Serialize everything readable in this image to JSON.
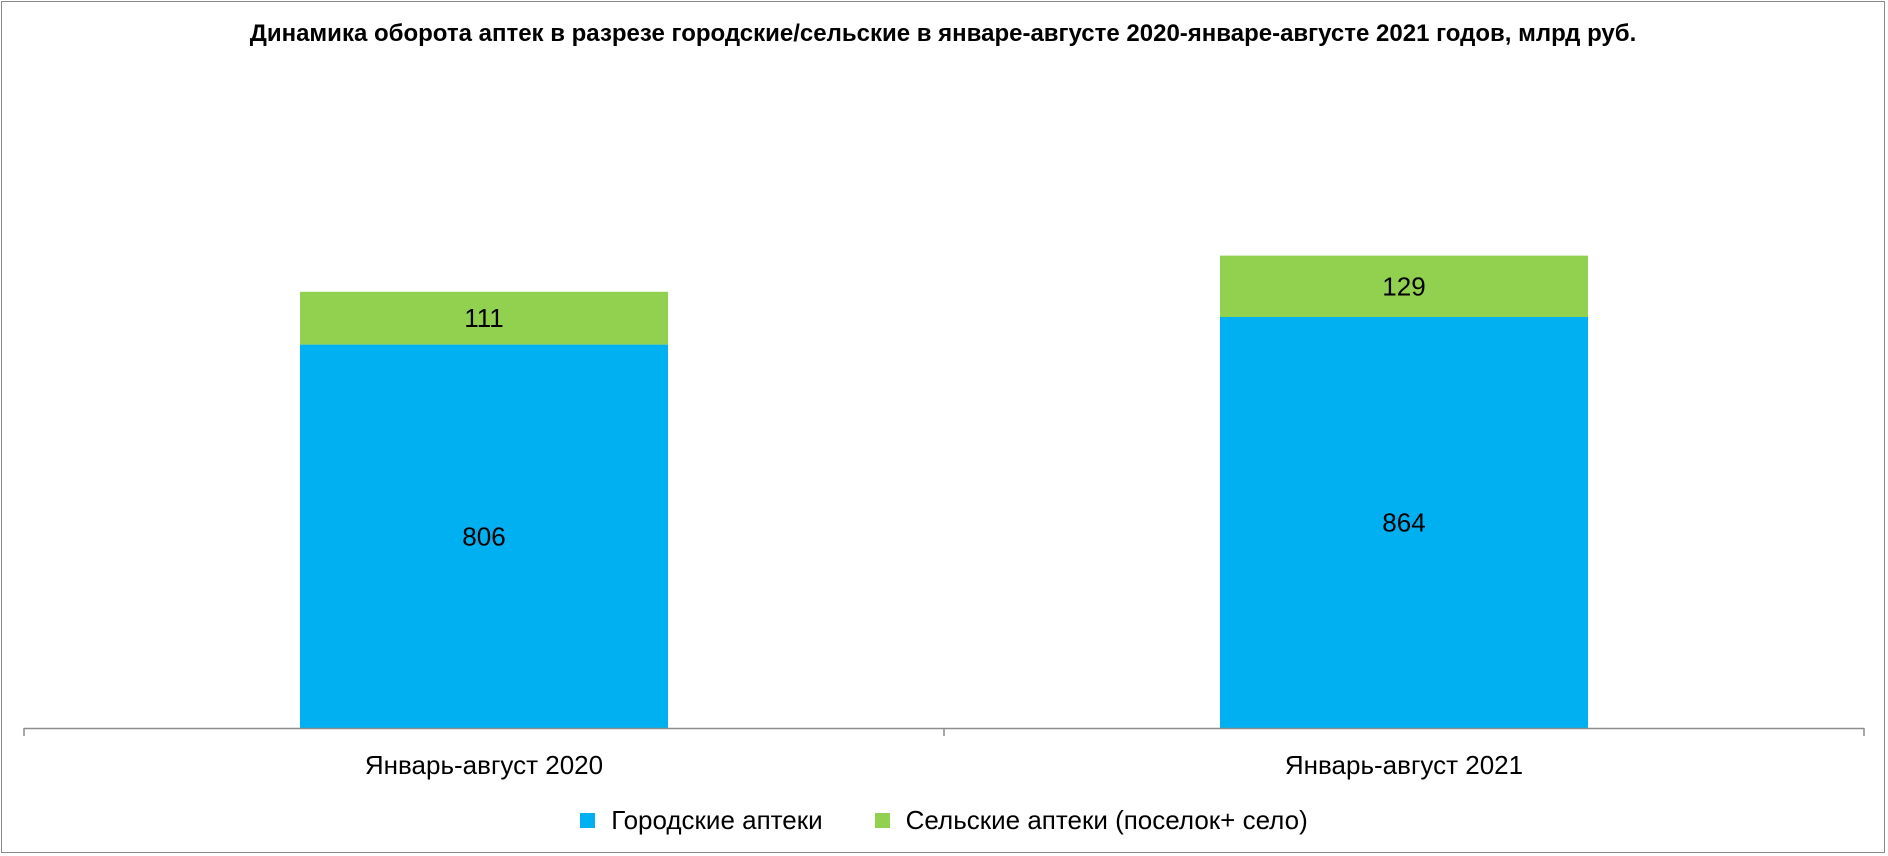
{
  "chart_data": {
    "type": "bar",
    "stacked": true,
    "title": "Динамика оборота аптек в разрезе городские/сельские в январе-августе 2020-январе-августе 2021 годов, млрд руб.",
    "categories": [
      "Январь-август 2020",
      "Январь-август 2021"
    ],
    "series": [
      {
        "name": "Городские аптеки",
        "values": [
          806,
          864
        ],
        "color": "#00B0F0"
      },
      {
        "name": "Сельские аптеки (поселок+ село)",
        "values": [
          111,
          129
        ],
        "color": "#92D050"
      }
    ],
    "ylim": [
      0,
      1000
    ],
    "grid": false,
    "legend_position": "bottom"
  }
}
